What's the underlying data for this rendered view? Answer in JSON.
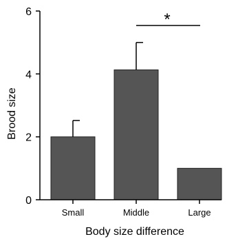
{
  "chart_data": {
    "type": "bar",
    "categories": [
      "Small",
      "Middle",
      "Large"
    ],
    "values": [
      2.0,
      4.13,
      1.0
    ],
    "error_upper": [
      2.52,
      5.0,
      null
    ],
    "xlabel": "Body size difference",
    "ylabel": "Brood size",
    "ylim": [
      0,
      6
    ],
    "yticks": [
      0,
      2,
      4,
      6
    ],
    "grid": false,
    "annotation": {
      "text": "*",
      "between": [
        "Middle",
        "Large"
      ]
    },
    "bar_color": "#555555"
  }
}
